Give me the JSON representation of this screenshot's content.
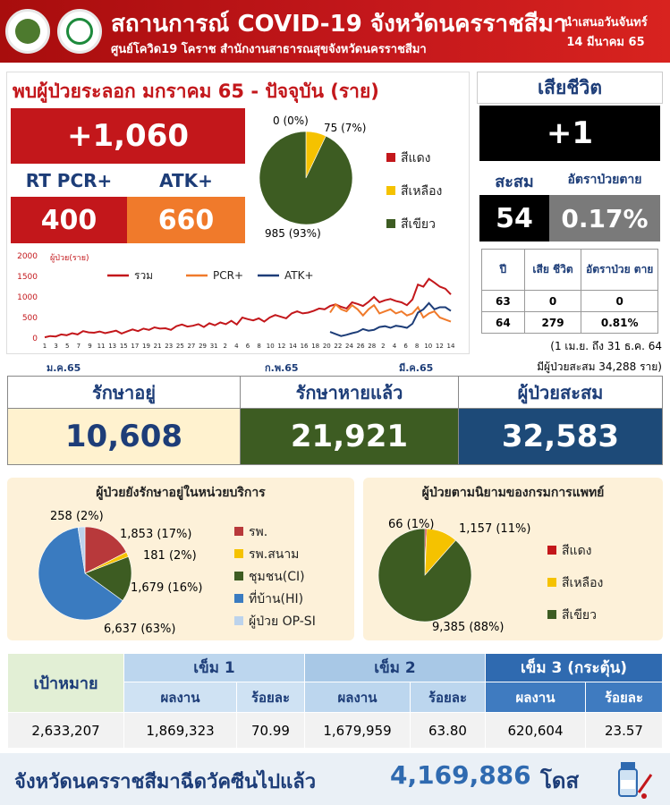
{
  "header": {
    "title": "สถานการณ์ COVID-19 จังหวัดนครราชสีมา",
    "subtitle": "ศูนย์โควิด19 โคราช สำนักงานสาธารณสุขจังหวัดนครราชสีมา",
    "date_line1": "นำเสนอวันจันทร์",
    "date_line2": "14 มีนาคม 65"
  },
  "new_cases": {
    "title": "พบผู้ป่วยระลอก มกราคม 65 - ปัจจุบัน (ราย)",
    "total": "+1,060",
    "rt_pcr_label": "RT PCR+",
    "atk_label": "ATK+",
    "rt_pcr_value": "400",
    "atk_value": "660"
  },
  "deaths": {
    "title": "เสียชีวิต",
    "new": "+1",
    "cumulative_label": "สะสม",
    "rate_label": "อัตราป่วยตาย",
    "cumulative": "54",
    "rate": "0.17%",
    "table_headers": [
      "ปี",
      "เสีย ชีวิต",
      "อัตราป่วย ตาย"
    ],
    "rows": [
      [
        "63",
        "0",
        "0"
      ],
      [
        "64",
        "279",
        "0.81%"
      ]
    ],
    "note1": "(1 เม.ย. ถึง 31 ธ.ค. 64",
    "note2": "มีผู้ป่วยสะสม  34,288 ราย)"
  },
  "stats": {
    "treating_label": "รักษาอยู่",
    "treating": "10,608",
    "recovered_label": "รักษาหายแล้ว",
    "recovered": "21,921",
    "total_label": "ผู้ป่วยสะสม",
    "total": "32,583"
  },
  "vaccine": {
    "target_label": "เป้าหมาย",
    "dose1_label": "เข็ม 1",
    "dose2_label": "เข็ม 2",
    "dose3_label": "เข็ม 3 (กระตุ้น)",
    "result_label": "ผลงาน",
    "percent_label": "ร้อยละ",
    "target": "2,633,207",
    "dose1": "1,869,323",
    "dose1_pct": "70.99",
    "dose2": "1,679,959",
    "dose2_pct": "63.80",
    "dose3": "620,604",
    "dose3_pct": "23.57"
  },
  "footer": {
    "text": "จังหวัดนครราชสีมาฉีดวัคซีนไปแล้ว",
    "value": "4,169,886",
    "unit": "โดส"
  },
  "colors": {
    "red": "#c3171b",
    "orange": "#f07a2b",
    "yellow": "#f5c200",
    "green": "#3d5c22",
    "navy": "#1d4a78",
    "black": "#000000",
    "gray": "#7a7a7a"
  },
  "chart_data": [
    {
      "type": "pie",
      "title": "",
      "labels": [
        "สีแดง",
        "สีเหลือง",
        "สีเขียว"
      ],
      "slice_labels": [
        "0 (0%)",
        "75 (7%)",
        "985 (93%)"
      ],
      "values": [
        0,
        75,
        985
      ],
      "colors": [
        "#c3171b",
        "#f5c200",
        "#3d5c22"
      ]
    },
    {
      "type": "line",
      "title": "",
      "ylabel": "ผู้ป่วย(ราย)",
      "ylim": [
        0,
        2000
      ],
      "yticks": [
        0,
        500,
        1000,
        1500,
        2000
      ],
      "x_tick_labels": [
        "1",
        "3",
        "5",
        "7",
        "9",
        "11",
        "13",
        "15",
        "17",
        "19",
        "21",
        "23",
        "25",
        "27",
        "29",
        "31",
        "2",
        "4",
        "6",
        "8",
        "10",
        "12",
        "14",
        "16",
        "18",
        "20",
        "22",
        "24",
        "26",
        "28",
        "2",
        "4",
        "6",
        "8",
        "10",
        "12",
        "14"
      ],
      "month_labels": [
        "ม.ค.65",
        "ก.พ.65",
        "มี.ค.65"
      ],
      "series": [
        {
          "name": "รวม",
          "color": "#c3171b",
          "values": [
            20,
            50,
            40,
            90,
            70,
            120,
            90,
            170,
            140,
            130,
            160,
            120,
            150,
            180,
            110,
            160,
            210,
            170,
            230,
            200,
            260,
            230,
            240,
            200,
            290,
            330,
            280,
            300,
            340,
            270,
            360,
            310,
            380,
            340,
            420,
            330,
            500,
            460,
            430,
            480,
            400,
            500,
            560,
            520,
            480,
            600,
            650,
            600,
            620,
            660,
            720,
            700,
            780,
            820,
            760,
            720,
            870,
            830,
            780,
            880,
            1000,
            870,
            920,
            950,
            900,
            870,
            800,
            940,
            1300,
            1250,
            1440,
            1350,
            1250,
            1200,
            1060
          ]
        },
        {
          "name": "PCR+",
          "color": "#f07a2b",
          "values": [
            null,
            null,
            null,
            null,
            null,
            null,
            null,
            null,
            null,
            null,
            null,
            null,
            null,
            null,
            null,
            null,
            null,
            null,
            null,
            null,
            null,
            null,
            null,
            null,
            null,
            null,
            null,
            null,
            null,
            null,
            null,
            null,
            null,
            null,
            null,
            null,
            null,
            null,
            null,
            null,
            null,
            null,
            null,
            null,
            null,
            null,
            null,
            null,
            null,
            null,
            null,
            null,
            620,
            820,
            700,
            650,
            800,
            700,
            550,
            700,
            800,
            600,
            650,
            700,
            600,
            650,
            550,
            600,
            750,
            500,
            600,
            650,
            500,
            450,
            400
          ]
        },
        {
          "name": "ATK+",
          "color": "#1d3d78",
          "values": [
            null,
            null,
            null,
            null,
            null,
            null,
            null,
            null,
            null,
            null,
            null,
            null,
            null,
            null,
            null,
            null,
            null,
            null,
            null,
            null,
            null,
            null,
            null,
            null,
            null,
            null,
            null,
            null,
            null,
            null,
            null,
            null,
            null,
            null,
            null,
            null,
            null,
            null,
            null,
            null,
            null,
            null,
            null,
            null,
            null,
            null,
            null,
            null,
            null,
            null,
            null,
            null,
            150,
            100,
            50,
            80,
            120,
            150,
            220,
            180,
            200,
            270,
            290,
            250,
            300,
            280,
            250,
            350,
            620,
            700,
            850,
            700,
            750,
            750,
            660
          ]
        }
      ]
    },
    {
      "type": "pie",
      "title": "ผู้ป่วยยังรักษาอยู่ในหน่วยบริการ",
      "labels": [
        "รพ.",
        "รพ.สนาม",
        "ชุมชน(CI)",
        "ที่บ้าน(HI)",
        "ผู้ป่วย OP-SI"
      ],
      "slice_labels": [
        "1,853 (17%)",
        "181 (2%)",
        "1,679 (16%)",
        "6,637 (63%)",
        "258  (2%)"
      ],
      "values": [
        1853,
        181,
        1679,
        6637,
        258
      ],
      "colors": [
        "#b8393b",
        "#f5c200",
        "#3d5c22",
        "#3a7bc0",
        "#bcd3ec"
      ]
    },
    {
      "type": "pie",
      "title": "ผู้ป่วยตามนิยามของกรมการแพทย์",
      "labels": [
        "สีแดง",
        "สีเหลือง",
        "สีเขียว"
      ],
      "slice_labels": [
        "66 (1%)",
        "1,157 (11%)",
        "9,385 (88%)"
      ],
      "values": [
        66,
        1157,
        9385
      ],
      "colors": [
        "#c3171b",
        "#f5c200",
        "#3d5c22"
      ]
    }
  ]
}
